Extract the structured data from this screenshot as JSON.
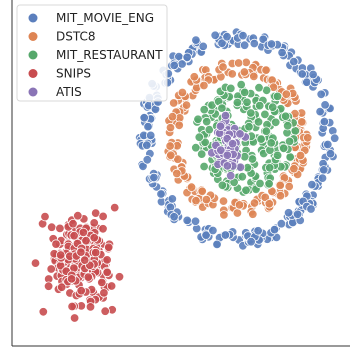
{
  "chart_data": {
    "type": "scatter",
    "title": "",
    "xlabel": "",
    "ylabel": "",
    "axes_ticks": "none",
    "grid": false,
    "legend": {
      "placement": "top-left",
      "entries": [
        {
          "name": "MIT_MOVIE_ENG",
          "color": "#5b7fbd"
        },
        {
          "name": "DSTC8",
          "color": "#de8554"
        },
        {
          "name": "MIT_RESTAURANT",
          "color": "#56a86b"
        },
        {
          "name": "SNIPS",
          "color": "#c84c4f"
        },
        {
          "name": "ATIS",
          "color": "#8a74b6"
        }
      ]
    },
    "xlim": [
      0,
      100
    ],
    "ylim": [
      0,
      100
    ],
    "series": [
      {
        "name": "MIT_MOVIE_ENG",
        "color": "#5b7fbd",
        "shape": "outer ring",
        "center": [
          66.5,
          60
        ],
        "radius": [
          25,
          29
        ],
        "count": 270
      },
      {
        "name": "DSTC8",
        "color": "#de8554",
        "shape": "middle ring",
        "center": [
          66.5,
          60
        ],
        "radius": [
          17,
          21
        ],
        "count": 210
      },
      {
        "name": "MIT_RESTAURANT",
        "color": "#56a86b",
        "shape": "filled disc",
        "center": [
          69,
          60
        ],
        "radius": [
          0,
          15
        ],
        "count": 230
      },
      {
        "name": "SNIPS",
        "color": "#c84c4f",
        "shape": "cluster",
        "center": [
          20,
          24
        ],
        "spread": [
          9,
          12
        ],
        "count": 240
      },
      {
        "name": "ATIS",
        "color": "#8a74b6",
        "shape": "small cluster",
        "center": [
          64,
          58
        ],
        "spread": [
          4,
          7
        ],
        "count": 60
      }
    ]
  }
}
